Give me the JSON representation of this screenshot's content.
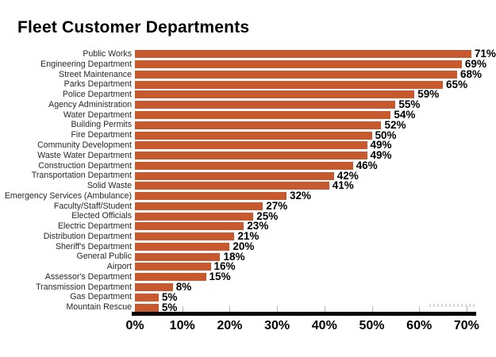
{
  "title": "Fleet Customer Departments",
  "chart_data": {
    "type": "bar",
    "orientation": "horizontal",
    "title": "Fleet Customer Departments",
    "categories": [
      "Public Works",
      "Engineering Department",
      "Street Maintenance",
      "Parks Department",
      "Police Department",
      "Agency Administration",
      "Water Department",
      "Building Permits",
      "Fire Department",
      "Community Development",
      "Waste Water Department",
      "Construction Department",
      "Transportation Department",
      "Solid Waste",
      "Emergency Services (Ambulance)",
      "Faculty/Staff/Student",
      "Elected Officials",
      "Electric Department",
      "Distribution Department",
      "Sheriff's Department",
      "General Public",
      "Airport",
      "Assessor's Department",
      "Transmission Department",
      "Gas Department",
      "Mountain Rescue"
    ],
    "values": [
      71,
      69,
      68,
      65,
      59,
      55,
      54,
      52,
      50,
      49,
      49,
      46,
      42,
      41,
      32,
      27,
      25,
      23,
      21,
      20,
      18,
      16,
      15,
      8,
      5,
      5
    ],
    "value_labels": [
      "71%",
      "69%",
      "68%",
      "65%",
      "59%",
      "55%",
      "54%",
      "52%",
      "50%",
      "49%",
      "49%",
      "46%",
      "42%",
      "41%",
      "32%",
      "27%",
      "25%",
      "23%",
      "21%",
      "20%",
      "18%",
      "16%",
      "15%",
      "8%",
      "5%",
      "5%"
    ],
    "x_ticks": [
      "0%",
      "10%",
      "20%",
      "30%",
      "40%",
      "50%",
      "60%",
      "70%"
    ],
    "xlim": [
      0,
      72
    ],
    "xlabel": "",
    "ylabel": "",
    "grid": false,
    "legend": false,
    "bar_color": "#C6592E",
    "axis_color": "#000000",
    "tick_color": "#b5b5b5"
  }
}
